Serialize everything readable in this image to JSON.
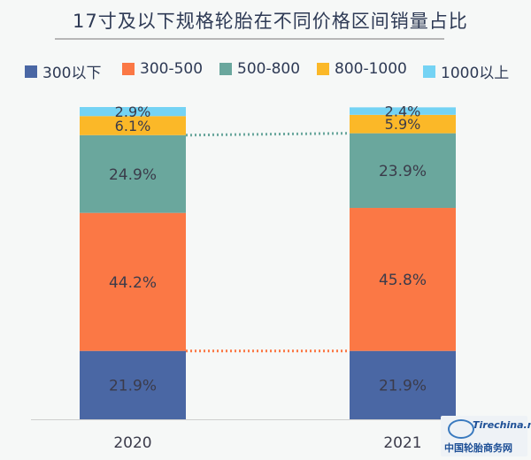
{
  "title": "17寸及以下规格轮胎在不同价格区间销量占比",
  "watermark": {
    "brand": "Tirechina",
    "tld": ".net",
    "subtitle": "中国轮胎商务网"
  },
  "chart_data": {
    "type": "bar",
    "stacked": true,
    "categories": [
      "2020",
      "2021"
    ],
    "ylim": [
      0,
      100
    ],
    "grid": false,
    "legend_position": "top",
    "series": [
      {
        "name": "300以下",
        "color": "#4a67a4",
        "values": [
          21.9,
          21.9
        ],
        "labels": [
          "21.9%",
          "21.9%"
        ]
      },
      {
        "name": "300-500",
        "color": "#fb7845",
        "values": [
          44.2,
          45.8
        ],
        "labels": [
          "44.2%",
          "45.8%"
        ]
      },
      {
        "name": "500-800",
        "color": "#6aa79d",
        "values": [
          24.9,
          23.9
        ],
        "labels": [
          "24.9%",
          "23.9%"
        ]
      },
      {
        "name": "800-1000",
        "color": "#fbb828",
        "values": [
          6.1,
          5.9
        ],
        "labels": [
          "6.1%",
          "5.9%"
        ]
      },
      {
        "name": "1000以上",
        "color": "#74d3f4",
        "values": [
          2.9,
          2.4
        ],
        "labels": [
          "2.9%",
          "2.4%"
        ]
      }
    ],
    "connectors": [
      {
        "between_series": "300以下",
        "color": "#fb7845"
      },
      {
        "between_series": "500-800",
        "color": "#6aa79d"
      }
    ]
  }
}
